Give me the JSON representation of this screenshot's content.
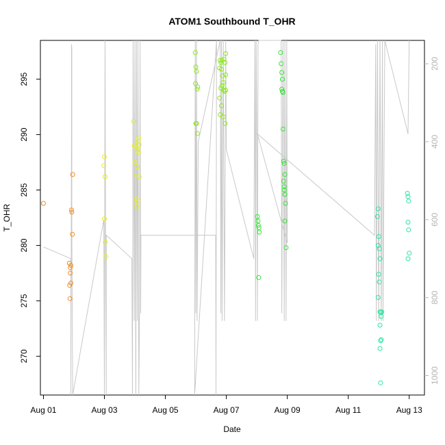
{
  "chart_data": {
    "type": "scatter",
    "title": "ATOM1 Southbound T_OHR",
    "xlabel": "Date",
    "ylabel": "T_OHR",
    "xlim": [
      -0.1,
      12.5
    ],
    "ylim": [
      266.5,
      298.5
    ],
    "x_ticks": [
      {
        "value": 0,
        "label": "Aug 01"
      },
      {
        "value": 2,
        "label": "Aug 03"
      },
      {
        "value": 4,
        "label": "Aug 05"
      },
      {
        "value": 6,
        "label": "Aug 07"
      },
      {
        "value": 8,
        "label": "Aug 09"
      },
      {
        "value": 10,
        "label": "Aug 11"
      },
      {
        "value": 12,
        "label": "Aug 13"
      }
    ],
    "y_ticks": [
      270,
      275,
      280,
      285,
      290,
      295
    ],
    "y2_ticks": [
      200,
      400,
      600,
      800,
      1000
    ],
    "y2_range": [
      1050,
      140
    ],
    "point_color_legend": "none",
    "series": [
      {
        "color": "#f08c1e",
        "points": [
          [
            0.0,
            283.8
          ],
          [
            0.85,
            278.4
          ],
          [
            0.86,
            276.4
          ],
          [
            0.87,
            275.2
          ],
          [
            0.88,
            277.5
          ],
          [
            0.9,
            276.6
          ],
          [
            0.9,
            278.2
          ],
          [
            0.92,
            283.2
          ],
          [
            0.93,
            283.0
          ],
          [
            0.95,
            281.0
          ],
          [
            0.96,
            286.4
          ],
          [
            0.88,
            278.0
          ]
        ]
      },
      {
        "color": "#e6f01e",
        "points": [
          [
            1.98,
            287.2
          ],
          [
            2.0,
            288.0
          ],
          [
            2.02,
            286.2
          ],
          [
            2.0,
            282.4
          ],
          [
            2.03,
            280.3
          ],
          [
            2.05,
            279.0
          ],
          [
            2.96,
            291.2
          ],
          [
            2.98,
            289.0
          ],
          [
            3.0,
            287.5
          ],
          [
            3.02,
            286.3
          ],
          [
            3.04,
            284.2
          ],
          [
            3.06,
            283.5
          ],
          [
            3.08,
            288.6
          ],
          [
            3.1,
            289.4
          ],
          [
            3.12,
            289.7
          ],
          [
            3.14,
            289.1
          ],
          [
            3.14,
            286.2
          ],
          [
            3.12,
            288.4
          ],
          [
            3.05,
            288.9
          ],
          [
            3.08,
            287.1
          ],
          [
            3.1,
            284.0
          ]
        ]
      },
      {
        "color": "#8ce61e",
        "points": [
          [
            4.98,
            297.4
          ],
          [
            5.0,
            296.1
          ],
          [
            5.02,
            295.7
          ],
          [
            4.99,
            294.6
          ],
          [
            5.04,
            294.1
          ],
          [
            5.06,
            294.3
          ],
          [
            5.0,
            291.0
          ],
          [
            5.02,
            291.0
          ],
          [
            5.05,
            290.1
          ],
          [
            5.78,
            293.3
          ],
          [
            5.8,
            296.7
          ],
          [
            5.82,
            296.5
          ],
          [
            5.84,
            295.9
          ],
          [
            5.86,
            296.7
          ],
          [
            5.88,
            295.3
          ],
          [
            5.9,
            294.7
          ],
          [
            5.92,
            294.0
          ],
          [
            5.94,
            293.9
          ],
          [
            5.96,
            296.5
          ],
          [
            5.98,
            297.3
          ],
          [
            5.96,
            291.0
          ],
          [
            5.84,
            292.6
          ],
          [
            5.8,
            291.8
          ],
          [
            5.9,
            291.6
          ],
          [
            5.98,
            295.4
          ],
          [
            5.78,
            296.0
          ],
          [
            5.86,
            294.4
          ],
          [
            5.92,
            296.8
          ],
          [
            5.98,
            294.0
          ],
          [
            5.82,
            294.2
          ]
        ]
      },
      {
        "color": "#32e632",
        "points": [
          [
            7.02,
            282.6
          ],
          [
            7.04,
            282.2
          ],
          [
            7.05,
            281.8
          ],
          [
            7.07,
            281.6
          ],
          [
            7.08,
            281.2
          ],
          [
            7.06,
            277.1
          ],
          [
            7.78,
            297.4
          ],
          [
            7.8,
            296.4
          ],
          [
            7.82,
            295.6
          ],
          [
            7.84,
            295.0
          ],
          [
            7.82,
            294.1
          ],
          [
            7.84,
            293.9
          ],
          [
            7.86,
            290.5
          ],
          [
            7.88,
            287.6
          ],
          [
            7.9,
            287.4
          ],
          [
            7.92,
            286.4
          ],
          [
            7.88,
            285.8
          ],
          [
            7.9,
            285.0
          ],
          [
            7.92,
            284.6
          ],
          [
            7.94,
            283.8
          ],
          [
            7.92,
            282.2
          ],
          [
            7.96,
            279.8
          ],
          [
            7.86,
            293.8
          ],
          [
            7.9,
            285.3
          ]
        ]
      },
      {
        "color": "#28e6a0",
        "points": [
          [
            10.98,
            283.3
          ],
          [
            10.96,
            282.6
          ],
          [
            11.0,
            280.8
          ],
          [
            10.98,
            280.0
          ],
          [
            11.02,
            279.7
          ],
          [
            11.04,
            278.8
          ],
          [
            11.0,
            277.4
          ],
          [
            11.02,
            276.7
          ],
          [
            10.98,
            275.3
          ],
          [
            11.04,
            274.0
          ],
          [
            11.06,
            274.0
          ],
          [
            11.08,
            273.6
          ],
          [
            11.1,
            274.0
          ],
          [
            11.04,
            272.8
          ],
          [
            11.06,
            271.4
          ],
          [
            11.08,
            271.5
          ],
          [
            11.04,
            270.7
          ],
          [
            11.06,
            267.6
          ],
          [
            11.94,
            284.7
          ],
          [
            11.96,
            284.4
          ],
          [
            11.98,
            284.0
          ],
          [
            11.96,
            282.1
          ],
          [
            11.98,
            281.4
          ],
          [
            12.0,
            279.3
          ],
          [
            11.96,
            278.8
          ]
        ]
      }
    ],
    "overlay_line": {
      "axis": "right",
      "color": "#c8c8c8",
      "path": [
        [
          0.0,
          670
        ],
        [
          0.9,
          700
        ],
        [
          0.9,
          1050
        ],
        [
          0.92,
          380
        ],
        [
          0.92,
          150
        ],
        [
          0.93,
          160
        ],
        [
          0.93,
          620
        ],
        [
          0.96,
          1050
        ],
        [
          1.98,
          600
        ],
        [
          2.0,
          1050
        ],
        [
          2.02,
          140
        ],
        [
          2.04,
          700
        ],
        [
          2.06,
          1050
        ],
        [
          2.06,
          640
        ],
        [
          2.9,
          700
        ],
        [
          2.92,
          1050
        ],
        [
          2.94,
          140
        ],
        [
          2.98,
          860
        ],
        [
          3.0,
          140
        ],
        [
          3.03,
          1050
        ],
        [
          3.05,
          140
        ],
        [
          3.08,
          860
        ],
        [
          3.1,
          140
        ],
        [
          3.13,
          1050
        ],
        [
          3.15,
          860
        ],
        [
          3.17,
          140
        ],
        [
          3.19,
          840
        ],
        [
          3.2,
          640
        ],
        [
          5.65,
          640
        ],
        [
          5.66,
          1050
        ],
        [
          5.68,
          140
        ],
        [
          4.96,
          1050
        ],
        [
          4.98,
          140
        ],
        [
          5.0,
          840
        ],
        [
          5.02,
          140
        ],
        [
          5.04,
          860
        ],
        [
          5.08,
          400
        ],
        [
          5.8,
          140
        ],
        [
          5.82,
          840
        ],
        [
          5.84,
          140
        ],
        [
          5.86,
          860
        ],
        [
          5.9,
          140
        ],
        [
          5.94,
          860
        ],
        [
          5.98,
          140
        ],
        [
          6.0,
          420
        ],
        [
          6.9,
          700
        ],
        [
          6.94,
          140
        ],
        [
          6.96,
          860
        ],
        [
          6.98,
          140
        ],
        [
          7.0,
          380
        ],
        [
          7.02,
          860
        ],
        [
          7.04,
          150
        ],
        [
          7.06,
          140
        ],
        [
          7.8,
          140
        ],
        [
          7.82,
          840
        ],
        [
          7.86,
          140
        ],
        [
          7.9,
          860
        ],
        [
          7.92,
          140
        ],
        [
          7.96,
          860
        ],
        [
          7.98,
          140
        ],
        [
          8.0,
          660
        ],
        [
          7.02,
          380
        ],
        [
          10.86,
          640
        ],
        [
          10.9,
          150
        ],
        [
          10.92,
          860
        ],
        [
          10.96,
          140
        ],
        [
          11.0,
          860
        ],
        [
          11.04,
          140
        ],
        [
          11.08,
          860
        ],
        [
          11.12,
          140
        ],
        [
          11.14,
          860
        ],
        [
          11.2,
          140
        ],
        [
          11.96,
          380
        ],
        [
          12.0,
          140
        ]
      ]
    }
  }
}
